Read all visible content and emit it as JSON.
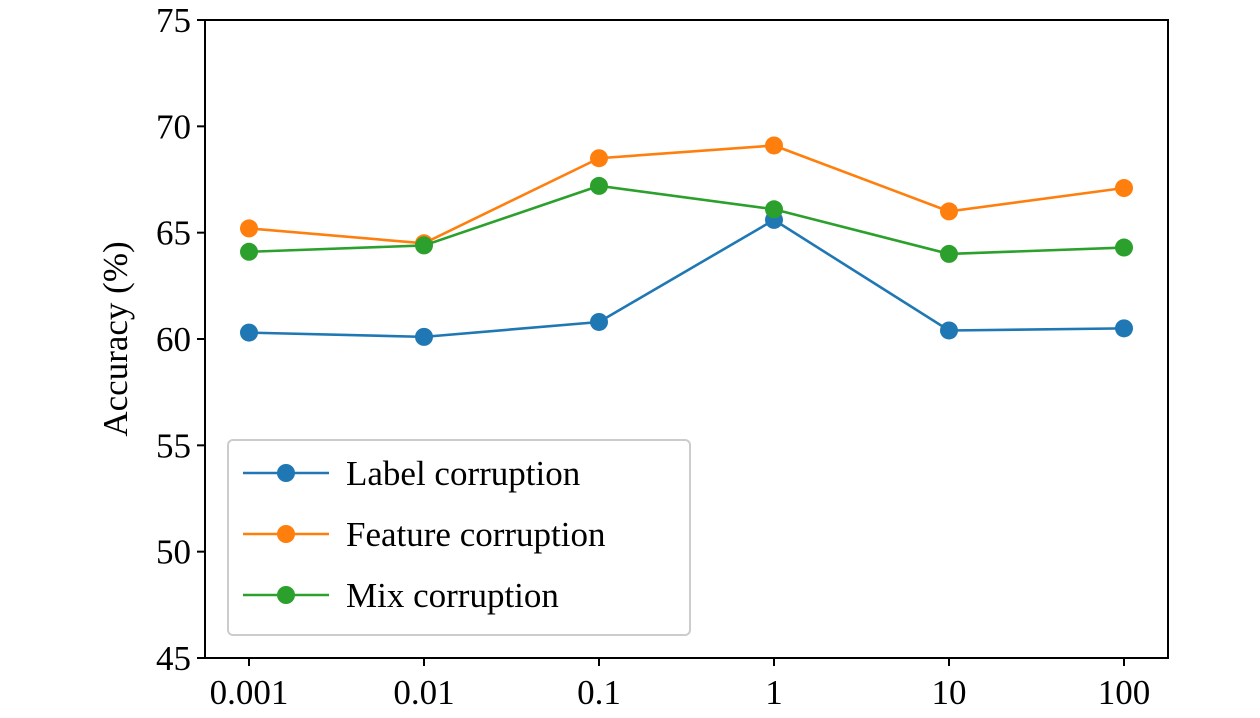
{
  "chart_data": {
    "type": "line",
    "xlabel": "",
    "ylabel": "Accuracy (%)",
    "categories": [
      "0.001",
      "0.01",
      "0.1",
      "1",
      "10",
      "100"
    ],
    "ylim": [
      45,
      75
    ],
    "yticks": [
      45,
      50,
      55,
      60,
      65,
      70,
      75
    ],
    "grid": false,
    "legend_position": "lower-left",
    "series": [
      {
        "name": "Label corruption",
        "color": "#1f77b4",
        "values": [
          60.3,
          60.1,
          60.8,
          65.6,
          60.4,
          60.5
        ]
      },
      {
        "name": "Feature corruption",
        "color": "#ff7f0e",
        "values": [
          65.2,
          64.5,
          68.5,
          69.1,
          66.0,
          67.1
        ]
      },
      {
        "name": "Mix corruption",
        "color": "#2ca02c",
        "values": [
          64.1,
          64.4,
          67.2,
          66.1,
          64.0,
          64.3
        ]
      }
    ]
  }
}
